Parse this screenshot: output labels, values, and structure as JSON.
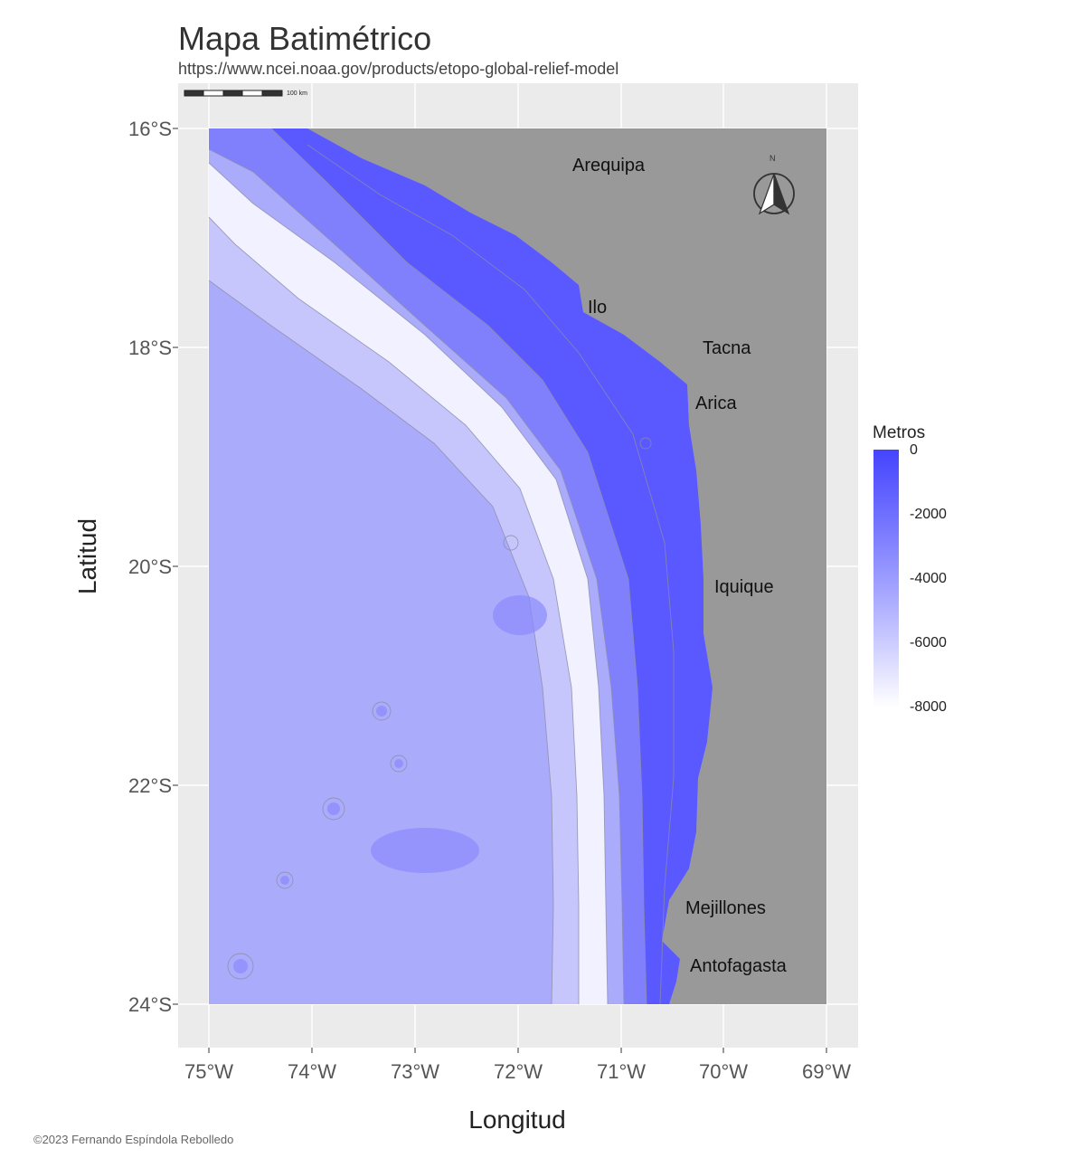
{
  "title": "Mapa Batimétrico",
  "subtitle": "https://www.ncei.noaa.gov/products/etopo-global-relief-model",
  "credit": "©2023 Fernando Espíndola Rebolledo",
  "axes": {
    "xlabel": "Longitud",
    "ylabel": "Latitud",
    "xticks": [
      "75°W",
      "74°W",
      "73°W",
      "72°W",
      "71°W",
      "70°W",
      "69°W"
    ],
    "yticks": [
      "16°S",
      "18°S",
      "20°S",
      "22°S",
      "24°S"
    ]
  },
  "legend": {
    "title": "Metros",
    "labels": [
      "0",
      "-2000",
      "-4000",
      "-6000",
      "-8000"
    ],
    "colors": {
      "shallow": "#4444ff",
      "deep": "#ffffff",
      "land": "#999999",
      "panel": "#ebebeb"
    }
  },
  "scale_bar": {
    "label": "100 km"
  },
  "north_arrow": {
    "label": "N",
    "icon": "north-arrow-icon"
  },
  "cities": [
    {
      "name": "Arequipa"
    },
    {
      "name": "Ilo"
    },
    {
      "name": "Tacna"
    },
    {
      "name": "Arica"
    },
    {
      "name": "Iquique"
    },
    {
      "name": "Mejillones"
    },
    {
      "name": "Antofagasta"
    }
  ],
  "map_extent": {
    "lon": [
      -75,
      -69
    ],
    "lat": [
      -24,
      -16
    ]
  }
}
